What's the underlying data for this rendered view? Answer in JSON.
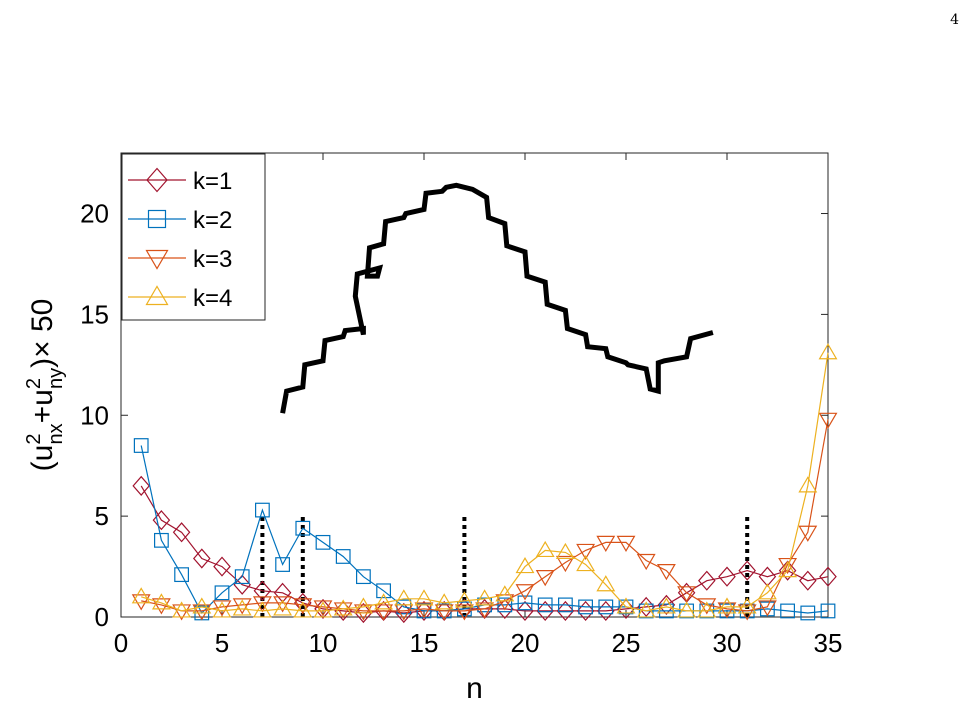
{
  "page_number": "4",
  "chart_data": {
    "type": "line",
    "title": "",
    "xlabel": "n",
    "ylabel": "(u²nx+u²ny)× 50",
    "ylabel_parts": {
      "open": "(u",
      "sup1": "2",
      "sub1": "nx",
      "plus": "+u",
      "sup2": "2",
      "sub2": "ny",
      "close": ")× 50"
    },
    "xlim": [
      0,
      35
    ],
    "ylim": [
      0,
      23
    ],
    "xticks": [
      0,
      5,
      10,
      15,
      20,
      25,
      30,
      35
    ],
    "yticks": [
      0,
      5,
      10,
      15,
      20
    ],
    "xtick_labels": [
      "0",
      "5",
      "10",
      "15",
      "20",
      "25",
      "30",
      "35"
    ],
    "ytick_labels": [
      "0",
      "5",
      "10",
      "15",
      "20"
    ],
    "grid": false,
    "legend_position": "top-left",
    "series": [
      {
        "name": "k=1",
        "label": "k=1",
        "color": "#A2142F",
        "marker": "diamond",
        "x": [
          1,
          2,
          3,
          4,
          5,
          6,
          7,
          8,
          9,
          10,
          11,
          12,
          13,
          14,
          15,
          16,
          17,
          18,
          19,
          20,
          21,
          22,
          23,
          24,
          25,
          26,
          27,
          28,
          29,
          30,
          31,
          32,
          33,
          34,
          35
        ],
        "y": [
          6.5,
          4.8,
          4.2,
          2.9,
          2.5,
          1.6,
          1.3,
          1.2,
          0.7,
          0.4,
          0.3,
          0.2,
          0.3,
          0.2,
          0.3,
          0.3,
          0.4,
          0.4,
          0.4,
          0.3,
          0.3,
          0.3,
          0.3,
          0.3,
          0.4,
          0.5,
          0.6,
          1.2,
          1.8,
          2.0,
          2.3,
          2.0,
          2.3,
          1.8,
          2.0
        ]
      },
      {
        "name": "k=2",
        "label": "k=2",
        "color": "#0072BD",
        "marker": "square",
        "x": [
          1,
          2,
          3,
          4,
          5,
          6,
          7,
          8,
          9,
          10,
          11,
          12,
          13,
          14,
          15,
          16,
          17,
          18,
          19,
          20,
          21,
          22,
          23,
          24,
          25,
          26,
          27,
          28,
          29,
          30,
          31,
          32,
          33,
          34,
          35
        ],
        "y": [
          8.5,
          3.8,
          2.1,
          0.2,
          1.2,
          2.0,
          5.3,
          2.6,
          4.4,
          3.7,
          3.0,
          2.0,
          1.3,
          0.5,
          0.3,
          0.3,
          0.4,
          0.6,
          0.6,
          0.7,
          0.6,
          0.6,
          0.5,
          0.5,
          0.5,
          0.3,
          0.3,
          0.3,
          0.3,
          0.3,
          0.3,
          0.4,
          0.3,
          0.2,
          0.3
        ]
      },
      {
        "name": "k=3",
        "label": "k=3",
        "color": "#D95319",
        "marker": "triangle-down",
        "x": [
          1,
          2,
          3,
          4,
          5,
          6,
          7,
          8,
          9,
          10,
          11,
          12,
          13,
          14,
          15,
          16,
          17,
          18,
          19,
          20,
          21,
          22,
          23,
          24,
          25,
          26,
          27,
          28,
          29,
          30,
          31,
          32,
          33,
          34,
          35
        ],
        "y": [
          0.8,
          0.6,
          0.3,
          0.3,
          0.5,
          0.6,
          0.7,
          0.7,
          0.6,
          0.5,
          0.4,
          0.3,
          0.3,
          0.3,
          0.4,
          0.3,
          0.3,
          0.4,
          0.8,
          1.3,
          2.0,
          2.7,
          3.3,
          3.7,
          3.7,
          2.8,
          2.3,
          1.2,
          0.6,
          0.4,
          0.3,
          0.5,
          2.6,
          4.2,
          9.8
        ]
      },
      {
        "name": "k=4",
        "label": "k=4",
        "color": "#EDB120",
        "marker": "triangle-up",
        "x": [
          1,
          2,
          3,
          4,
          5,
          6,
          7,
          8,
          9,
          10,
          11,
          12,
          13,
          14,
          15,
          16,
          17,
          18,
          19,
          20,
          21,
          22,
          23,
          24,
          25,
          26,
          27,
          28,
          29,
          30,
          31,
          32,
          33,
          34,
          35
        ],
        "y": [
          1.0,
          0.7,
          0.3,
          0.5,
          0.3,
          0.4,
          0.3,
          0.4,
          0.3,
          0.3,
          0.4,
          0.5,
          0.7,
          0.9,
          0.9,
          0.7,
          0.8,
          0.9,
          1.1,
          2.5,
          3.3,
          3.2,
          2.6,
          1.6,
          0.5,
          0.3,
          0.5,
          0.3,
          0.3,
          0.5,
          0.5,
          1.2,
          2.3,
          6.5,
          13.1
        ]
      }
    ],
    "vertical_markers_x": [
      7,
      9,
      17,
      31
    ],
    "vertical_marker_top": 5,
    "overlay_line": {
      "color": "#000000",
      "x": [
        8,
        8.2,
        9,
        9.1,
        10,
        10.1,
        11,
        11.1,
        12,
        12,
        11.6,
        11.7,
        12.8,
        12.7,
        12.2,
        12.3,
        13,
        13.1,
        14,
        14.1,
        15,
        15.1,
        15.9,
        16.1,
        16.6,
        17.4,
        18.1,
        18.2,
        19,
        19.1,
        20,
        20.1,
        21,
        21.1,
        22,
        22.1,
        23,
        23.1,
        24,
        24.1,
        25,
        25.1,
        26,
        26.2,
        26.6,
        26.6,
        26.9,
        28,
        28.2,
        29.3
      ],
      "y": [
        10.1,
        11.2,
        11.4,
        12.5,
        12.7,
        13.7,
        13.9,
        14.2,
        14.3,
        14.0,
        15.9,
        17.0,
        17.3,
        16.9,
        16.9,
        18.3,
        18.5,
        19.6,
        19.8,
        20.0,
        20.2,
        21.0,
        21.1,
        21.3,
        21.4,
        21.2,
        20.8,
        19.8,
        19.5,
        18.4,
        18.1,
        16.9,
        16.6,
        15.5,
        15.2,
        14.3,
        14.0,
        13.4,
        13.3,
        12.9,
        12.6,
        12.5,
        12.3,
        11.3,
        11.2,
        12.6,
        12.7,
        12.9,
        13.8,
        14.1
      ]
    }
  }
}
